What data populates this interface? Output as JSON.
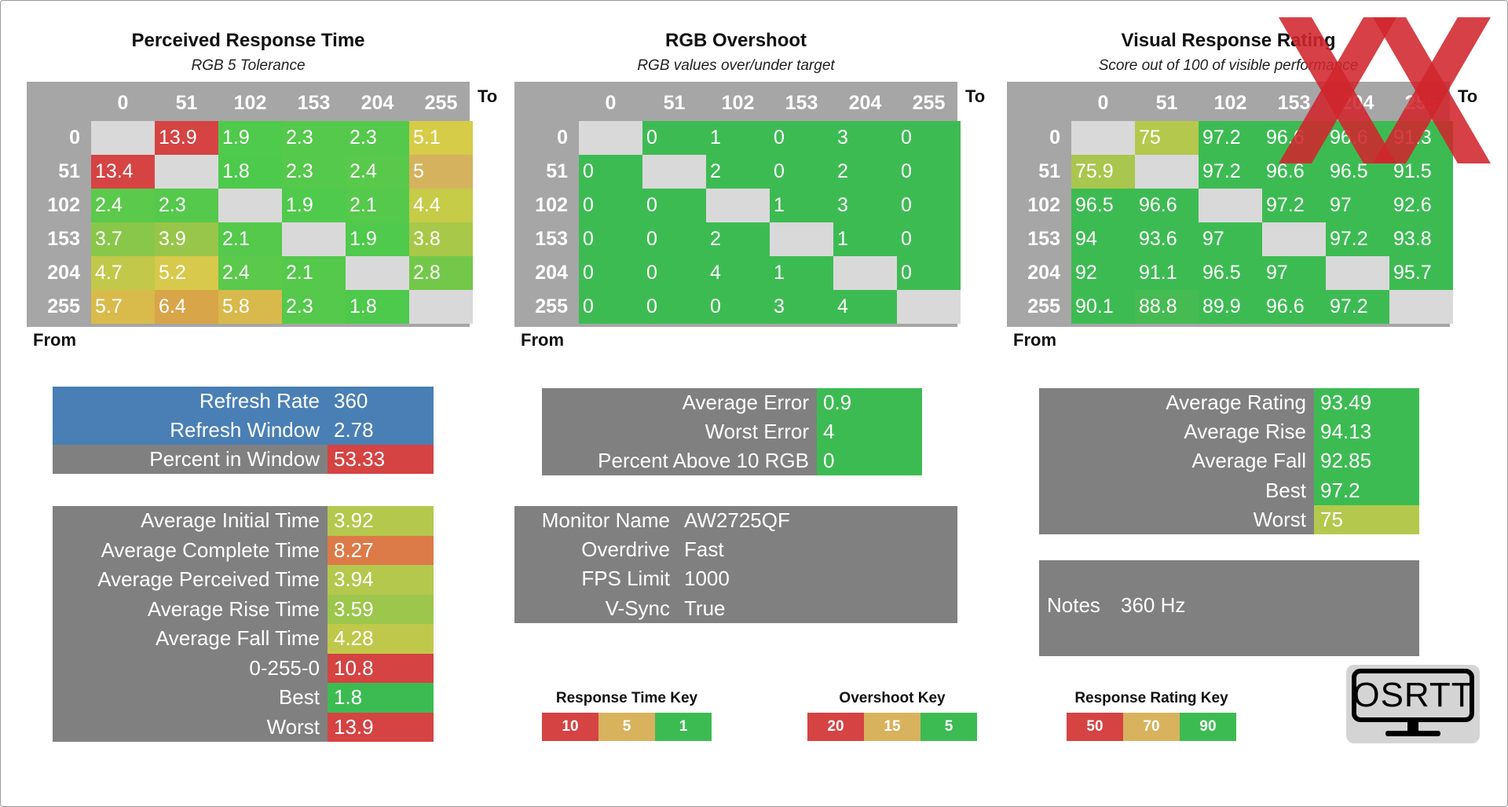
{
  "matrices": [
    {
      "title": "Perceived Response Time",
      "subtitle": "RGB 5 Tolerance",
      "cols": [
        "0",
        "51",
        "102",
        "153",
        "204",
        "255"
      ],
      "rows": [
        "0",
        "51",
        "102",
        "153",
        "204",
        "255"
      ],
      "to_label": "To",
      "from_label": "From",
      "cells": [
        [
          "",
          "13.9",
          "1.9",
          "2.3",
          "2.3",
          "5.1"
        ],
        [
          "13.4",
          "",
          "1.8",
          "2.3",
          "2.4",
          "5"
        ],
        [
          "2.4",
          "2.3",
          "",
          "1.9",
          "2.1",
          "4.4"
        ],
        [
          "3.7",
          "3.9",
          "2.1",
          "",
          "1.9",
          "3.8"
        ],
        [
          "4.7",
          "5.2",
          "2.4",
          "2.1",
          "",
          "2.8"
        ],
        [
          "5.7",
          "6.4",
          "5.8",
          "2.3",
          "1.8",
          ""
        ]
      ],
      "colors": [
        [
          "",
          "#d54343",
          "#4fca4c",
          "#55c94b",
          "#55c94b",
          "#d6cc47"
        ],
        [
          "#d54343",
          "",
          "#4dc94c",
          "#55c94b",
          "#58c94b",
          "#d5b35e"
        ],
        [
          "#5bc94b",
          "#55c94b",
          "",
          "#4fca4c",
          "#54c94b",
          "#c6cb48"
        ],
        [
          "#88c74a",
          "#98c64a",
          "#54c94b",
          "",
          "#4fca4c",
          "#a8c849"
        ],
        [
          "#c2c84a",
          "#d7c94b",
          "#5bc94b",
          "#54c94b",
          "",
          "#73c84a"
        ],
        [
          "#d8bb4b",
          "#d8a549",
          "#d8b94b",
          "#55c94b",
          "#4dc94c",
          ""
        ]
      ]
    },
    {
      "title": "RGB Overshoot",
      "subtitle": "RGB values over/under target",
      "cols": [
        "0",
        "51",
        "102",
        "153",
        "204",
        "255"
      ],
      "rows": [
        "0",
        "51",
        "102",
        "153",
        "204",
        "255"
      ],
      "to_label": "To",
      "from_label": "From",
      "cells": [
        [
          "",
          "0",
          "1",
          "0",
          "3",
          "0"
        ],
        [
          "0",
          "",
          "2",
          "0",
          "2",
          "0"
        ],
        [
          "0",
          "0",
          "",
          "1",
          "3",
          "0"
        ],
        [
          "0",
          "0",
          "2",
          "",
          "1",
          "0"
        ],
        [
          "0",
          "0",
          "4",
          "1",
          "",
          "0"
        ],
        [
          "0",
          "0",
          "0",
          "3",
          "4",
          ""
        ]
      ],
      "colors": [
        [
          "",
          "#3dbb53",
          "#3dbb53",
          "#3dbb53",
          "#3dbb53",
          "#3dbb53"
        ],
        [
          "#3dbb53",
          "",
          "#3dbb53",
          "#3dbb53",
          "#3dbb53",
          "#3dbb53"
        ],
        [
          "#3dbb53",
          "#3dbb53",
          "",
          "#3dbb53",
          "#3dbb53",
          "#3dbb53"
        ],
        [
          "#3dbb53",
          "#3dbb53",
          "#3dbb53",
          "",
          "#3dbb53",
          "#3dbb53"
        ],
        [
          "#3dbb53",
          "#3dbb53",
          "#3dbb53",
          "#3dbb53",
          "",
          "#3dbb53"
        ],
        [
          "#3dbb53",
          "#3dbb53",
          "#3dbb53",
          "#3dbb53",
          "#3dbb53",
          ""
        ]
      ]
    },
    {
      "title": "Visual Response Rating",
      "subtitle": "Score out of 100 of visible performance",
      "cols": [
        "0",
        "51",
        "102",
        "153",
        "204",
        "255"
      ],
      "rows": [
        "0",
        "51",
        "102",
        "153",
        "204",
        "255"
      ],
      "to_label": "To",
      "from_label": "From",
      "cells": [
        [
          "",
          "75",
          "97.2",
          "96.6",
          "96.6",
          "91.3"
        ],
        [
          "75.9",
          "",
          "97.2",
          "96.6",
          "96.5",
          "91.5"
        ],
        [
          "96.5",
          "96.6",
          "",
          "97.2",
          "97",
          "92.6"
        ],
        [
          "94",
          "93.6",
          "97",
          "",
          "97.2",
          "93.8"
        ],
        [
          "92",
          "91.1",
          "96.5",
          "97",
          "",
          "95.7"
        ],
        [
          "90.1",
          "88.8",
          "89.9",
          "96.6",
          "97.2",
          ""
        ]
      ],
      "colors": [
        [
          "",
          "#b4c84d",
          "#3dbb53",
          "#3dbb53",
          "#3dbb53",
          "#3dbb53"
        ],
        [
          "#a9c64e",
          "",
          "#3dbb53",
          "#3dbb53",
          "#3dbb53",
          "#3dbb53"
        ],
        [
          "#3dbb53",
          "#3dbb53",
          "",
          "#3dbb53",
          "#3dbb53",
          "#3dbb53"
        ],
        [
          "#3dbb53",
          "#3dbb53",
          "#3dbb53",
          "",
          "#3dbb53",
          "#3dbb53"
        ],
        [
          "#3dbb53",
          "#3dbb53",
          "#3dbb53",
          "#3dbb53",
          "",
          "#3dbb53"
        ],
        [
          "#3dbb53",
          "#45bb52",
          "#3dbb53",
          "#3dbb53",
          "#3dbb53",
          ""
        ]
      ]
    }
  ],
  "refresh": [
    {
      "label": "Refresh Rate",
      "value": "360",
      "bg": "#4a7fb5",
      "vbg": "#4a7fb5"
    },
    {
      "label": "Refresh Window",
      "value": "2.78",
      "bg": "#4a7fb5",
      "vbg": "#4a7fb5"
    },
    {
      "label": "Percent in Window",
      "value": "53.33",
      "bg": "#808080",
      "vbg": "#d54343"
    }
  ],
  "timing": [
    {
      "label": "Average Initial Time",
      "value": "3.92",
      "vbg": "#b4c84d"
    },
    {
      "label": "Average Complete Time",
      "value": "8.27",
      "vbg": "#dc7a48"
    },
    {
      "label": "Average Perceived Time",
      "value": "3.94",
      "vbg": "#b4c84d"
    },
    {
      "label": "Average Rise Time",
      "value": "3.59",
      "vbg": "#9cc64c"
    },
    {
      "label": "Average Fall Time",
      "value": "4.28",
      "vbg": "#c0c84b"
    },
    {
      "label": "0-255-0",
      "value": "10.8",
      "vbg": "#d54343"
    },
    {
      "label": "Best",
      "value": "1.8",
      "vbg": "#3dbb53"
    },
    {
      "label": "Worst",
      "value": "13.9",
      "vbg": "#d54343"
    }
  ],
  "overshoot_stats": [
    {
      "label": "Average Error",
      "value": "0.9",
      "vbg": "#3dbb53"
    },
    {
      "label": "Worst Error",
      "value": "4",
      "vbg": "#3dbb53"
    },
    {
      "label": "Percent Above 10 RGB",
      "value": "0",
      "vbg": "#3dbb53"
    }
  ],
  "monitor": [
    {
      "label": "Monitor Name",
      "value": "AW2725QF"
    },
    {
      "label": "Overdrive",
      "value": "Fast"
    },
    {
      "label": "FPS Limit",
      "value": "1000"
    },
    {
      "label": "V-Sync",
      "value": "True"
    }
  ],
  "rating_stats": [
    {
      "label": "Average Rating",
      "value": "93.49",
      "vbg": "#3dbb53"
    },
    {
      "label": "Average Rise",
      "value": "94.13",
      "vbg": "#3dbb53"
    },
    {
      "label": "Average Fall",
      "value": "92.85",
      "vbg": "#3dbb53"
    },
    {
      "label": "Best",
      "value": "97.2",
      "vbg": "#3dbb53"
    },
    {
      "label": "Worst",
      "value": "75",
      "vbg": "#b4c84d"
    }
  ],
  "notes": {
    "label": "Notes",
    "value": "360 Hz"
  },
  "keys": [
    {
      "title": "Response Time Key",
      "items": [
        {
          "text": "10",
          "color": "#d54343"
        },
        {
          "text": "5",
          "color": "#d9b25e"
        },
        {
          "text": "1",
          "color": "#3dbb53"
        }
      ]
    },
    {
      "title": "Overshoot Key",
      "items": [
        {
          "text": "20",
          "color": "#d54343"
        },
        {
          "text": "15",
          "color": "#d9b25e"
        },
        {
          "text": "5",
          "color": "#3dbb53"
        }
      ]
    },
    {
      "title": "Response Rating Key",
      "items": [
        {
          "text": "50",
          "color": "#d54343"
        },
        {
          "text": "70",
          "color": "#d9b25e"
        },
        {
          "text": "90",
          "color": "#3dbb53"
        }
      ]
    }
  ],
  "logo": {
    "text": "OSRTT",
    "icon": "monitor-icon"
  },
  "watermark": {
    "icon": "xx-watermark-icon",
    "color": "#d0262c"
  }
}
